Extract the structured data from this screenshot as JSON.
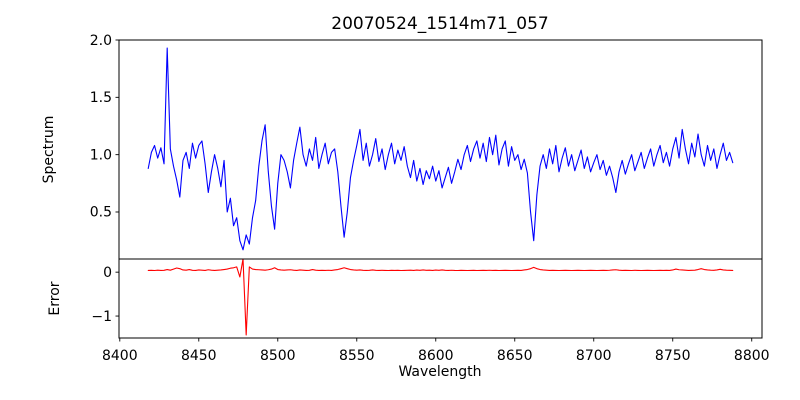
{
  "chart_data": {
    "type": "line",
    "title": "20070524_1514m71_057",
    "xlabel": "Wavelength",
    "grid": false,
    "legend": null,
    "xlim": [
      8399.5,
      8806.5
    ],
    "xticks": [
      8400,
      8450,
      8500,
      8550,
      8600,
      8650,
      8700,
      8750,
      8800
    ],
    "xtick_labels": [
      "8400",
      "8450",
      "8500",
      "8550",
      "8600",
      "8650",
      "8700",
      "8750",
      "8800"
    ],
    "panels": [
      {
        "ylabel": "Spectrum",
        "ylim": [
          0.09,
          2.0
        ],
        "yticks": [
          0.5,
          1.0,
          1.5,
          2.0
        ],
        "ytick_labels": [
          "0.5",
          "1.0",
          "1.5",
          "2.0"
        ],
        "line_color": "#0000ff"
      },
      {
        "ylabel": "Error",
        "ylim": [
          -1.5,
          0.3
        ],
        "yticks": [
          -1,
          0
        ],
        "ytick_labels": [
          "−1",
          "0"
        ],
        "line_color": "#ff0000"
      }
    ],
    "x": [
      8418,
      8420,
      8422,
      8424,
      8426,
      8428,
      8430,
      8432,
      8434,
      8436,
      8438,
      8440,
      8442,
      8444,
      8446,
      8448,
      8450,
      8452,
      8454,
      8456,
      8458,
      8460,
      8462,
      8464,
      8466,
      8468,
      8470,
      8472,
      8474,
      8476,
      8478,
      8480,
      8482,
      8484,
      8486,
      8488,
      8490,
      8492,
      8494,
      8496,
      8498,
      8500,
      8502,
      8504,
      8506,
      8508,
      8510,
      8512,
      8514,
      8516,
      8518,
      8520,
      8522,
      8524,
      8526,
      8528,
      8530,
      8532,
      8534,
      8536,
      8538,
      8540,
      8542,
      8544,
      8546,
      8548,
      8550,
      8552,
      8554,
      8556,
      8558,
      8560,
      8562,
      8564,
      8566,
      8568,
      8570,
      8572,
      8574,
      8576,
      8578,
      8580,
      8582,
      8584,
      8586,
      8588,
      8590,
      8592,
      8594,
      8596,
      8598,
      8600,
      8602,
      8604,
      8606,
      8608,
      8610,
      8612,
      8614,
      8616,
      8618,
      8620,
      8622,
      8624,
      8626,
      8628,
      8630,
      8632,
      8634,
      8636,
      8638,
      8640,
      8642,
      8644,
      8646,
      8648,
      8650,
      8652,
      8654,
      8656,
      8658,
      8660,
      8662,
      8664,
      8666,
      8668,
      8670,
      8672,
      8674,
      8676,
      8678,
      8680,
      8682,
      8684,
      8686,
      8688,
      8690,
      8692,
      8694,
      8696,
      8698,
      8700,
      8702,
      8704,
      8706,
      8708,
      8710,
      8712,
      8714,
      8716,
      8718,
      8720,
      8722,
      8724,
      8726,
      8728,
      8730,
      8732,
      8734,
      8736,
      8738,
      8740,
      8742,
      8744,
      8746,
      8748,
      8750,
      8752,
      8754,
      8756,
      8758,
      8760,
      8762,
      8764,
      8766,
      8768,
      8770,
      8772,
      8774,
      8776,
      8778,
      8780,
      8782,
      8784,
      8786,
      8788
    ],
    "series": [
      {
        "name": "spectrum",
        "panel": 0,
        "color": "#0000ff",
        "values": [
          0.88,
          1.02,
          1.08,
          0.97,
          1.06,
          0.92,
          1.93,
          1.05,
          0.9,
          0.78,
          0.63,
          0.95,
          1.02,
          0.88,
          1.1,
          0.97,
          1.08,
          1.12,
          0.92,
          0.67,
          0.85,
          1.0,
          0.88,
          0.72,
          0.95,
          0.5,
          0.62,
          0.38,
          0.45,
          0.25,
          0.17,
          0.3,
          0.22,
          0.45,
          0.6,
          0.9,
          1.12,
          1.26,
          0.85,
          0.55,
          0.35,
          0.75,
          1.0,
          0.95,
          0.85,
          0.71,
          0.95,
          1.1,
          1.24,
          1.0,
          0.9,
          1.05,
          0.95,
          1.15,
          0.88,
          1.0,
          1.1,
          0.92,
          1.02,
          1.05,
          0.85,
          0.55,
          0.28,
          0.5,
          0.8,
          0.95,
          1.08,
          1.22,
          0.95,
          1.1,
          0.9,
          1.0,
          1.14,
          0.94,
          1.05,
          0.87,
          1.0,
          1.1,
          0.92,
          1.04,
          0.95,
          1.07,
          0.9,
          0.8,
          0.95,
          0.77,
          0.88,
          0.74,
          0.86,
          0.79,
          0.9,
          0.77,
          0.86,
          0.71,
          0.8,
          0.89,
          0.75,
          0.85,
          0.96,
          0.87,
          1.0,
          1.08,
          0.94,
          1.05,
          1.12,
          0.97,
          1.1,
          0.94,
          1.15,
          1.0,
          1.17,
          0.91,
          1.05,
          1.12,
          0.9,
          1.07,
          0.95,
          1.0,
          0.87,
          0.96,
          0.84,
          0.5,
          0.25,
          0.65,
          0.9,
          1.0,
          0.88,
          1.05,
          0.92,
          1.08,
          0.85,
          0.97,
          1.06,
          0.9,
          1.0,
          0.86,
          0.95,
          1.04,
          0.88,
          0.98,
          0.85,
          0.93,
          1.0,
          0.87,
          0.95,
          0.82,
          0.9,
          0.8,
          0.67,
          0.85,
          0.95,
          0.83,
          0.92,
          1.0,
          0.86,
          0.94,
          1.02,
          0.88,
          0.97,
          1.05,
          0.9,
          1.0,
          1.08,
          0.93,
          1.02,
          0.9,
          1.05,
          1.15,
          0.97,
          1.22,
          1.05,
          0.92,
          1.1,
          0.98,
          1.18,
          1.0,
          0.9,
          1.08,
          0.95,
          1.05,
          0.88,
          1.0,
          1.1,
          0.95,
          1.02,
          0.93
        ]
      },
      {
        "name": "error",
        "panel": 1,
        "color": "#ff0000",
        "values": [
          0.04,
          0.042,
          0.038,
          0.045,
          0.04,
          0.042,
          0.06,
          0.045,
          0.07,
          0.095,
          0.08,
          0.05,
          0.045,
          0.06,
          0.042,
          0.04,
          0.05,
          0.045,
          0.04,
          0.055,
          0.045,
          0.04,
          0.045,
          0.05,
          0.06,
          0.07,
          0.09,
          0.1,
          0.12,
          -0.11,
          0.3,
          -1.43,
          0.12,
          0.07,
          0.06,
          0.055,
          0.05,
          0.045,
          0.055,
          0.07,
          0.1,
          0.06,
          0.05,
          0.045,
          0.05,
          0.055,
          0.045,
          0.04,
          0.05,
          0.045,
          0.04,
          0.042,
          0.06,
          0.045,
          0.04,
          0.042,
          0.04,
          0.044,
          0.04,
          0.05,
          0.06,
          0.08,
          0.1,
          0.08,
          0.06,
          0.05,
          0.045,
          0.05,
          0.042,
          0.04,
          0.042,
          0.05,
          0.042,
          0.04,
          0.042,
          0.04,
          0.038,
          0.042,
          0.04,
          0.042,
          0.038,
          0.04,
          0.042,
          0.045,
          0.04,
          0.048,
          0.042,
          0.05,
          0.042,
          0.045,
          0.04,
          0.048,
          0.042,
          0.05,
          0.043,
          0.04,
          0.044,
          0.04,
          0.038,
          0.042,
          0.04,
          0.038,
          0.04,
          0.042,
          0.038,
          0.04,
          0.042,
          0.04,
          0.044,
          0.04,
          0.042,
          0.038,
          0.04,
          0.042,
          0.04,
          0.038,
          0.04,
          0.042,
          0.04,
          0.05,
          0.06,
          0.08,
          0.11,
          0.08,
          0.06,
          0.05,
          0.045,
          0.04,
          0.042,
          0.04,
          0.038,
          0.04,
          0.042,
          0.04,
          0.038,
          0.04,
          0.042,
          0.04,
          0.038,
          0.04,
          0.042,
          0.04,
          0.038,
          0.04,
          0.042,
          0.04,
          0.044,
          0.05,
          0.055,
          0.045,
          0.04,
          0.042,
          0.04,
          0.038,
          0.042,
          0.04,
          0.038,
          0.04,
          0.042,
          0.04,
          0.038,
          0.04,
          0.042,
          0.04,
          0.042,
          0.04,
          0.05,
          0.07,
          0.055,
          0.05,
          0.045,
          0.04,
          0.042,
          0.045,
          0.06,
          0.08,
          0.06,
          0.05,
          0.045,
          0.042,
          0.05,
          0.065,
          0.05,
          0.045,
          0.042,
          0.04
        ]
      }
    ]
  }
}
